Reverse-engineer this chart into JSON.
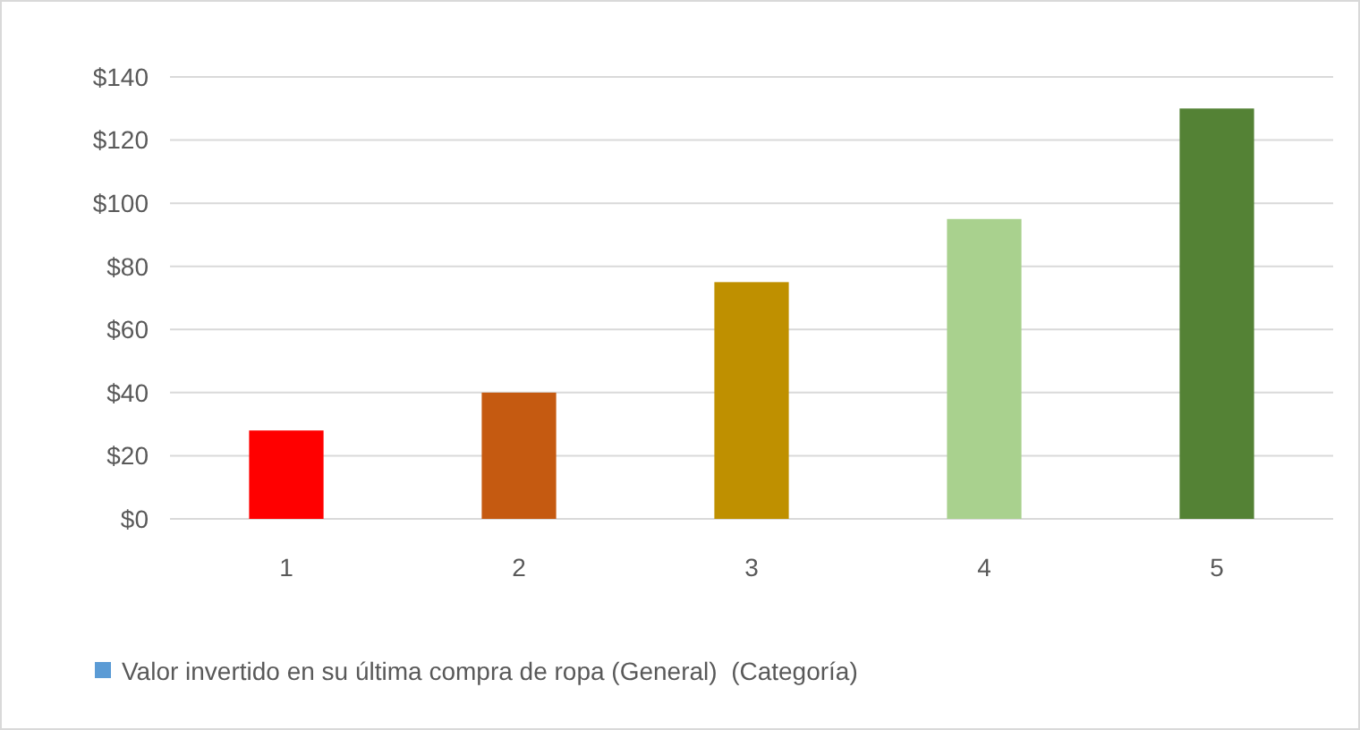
{
  "chart_data": {
    "type": "bar",
    "categories": [
      "1",
      "2",
      "3",
      "4",
      "5"
    ],
    "series": [
      {
        "name": "Valor invertido en su última compra de ropa (General)  (Categoría)",
        "color": "#5b9bd5",
        "colors": [
          "#ff0000",
          "#c55a11",
          "#bf9000",
          "#a9d18e",
          "#548235"
        ],
        "values": [
          28,
          40,
          75,
          95,
          130
        ]
      }
    ],
    "ylim": [
      0,
      140
    ],
    "yticks": [
      {
        "value": 0,
        "label": "$0"
      },
      {
        "value": 20,
        "label": "$20"
      },
      {
        "value": 40,
        "label": "$40"
      },
      {
        "value": 60,
        "label": "$60"
      },
      {
        "value": 80,
        "label": "$80"
      },
      {
        "value": 100,
        "label": "$100"
      },
      {
        "value": 120,
        "label": "$120"
      },
      {
        "value": 140,
        "label": "$140"
      }
    ],
    "grid": "y",
    "legend": "bottom"
  }
}
